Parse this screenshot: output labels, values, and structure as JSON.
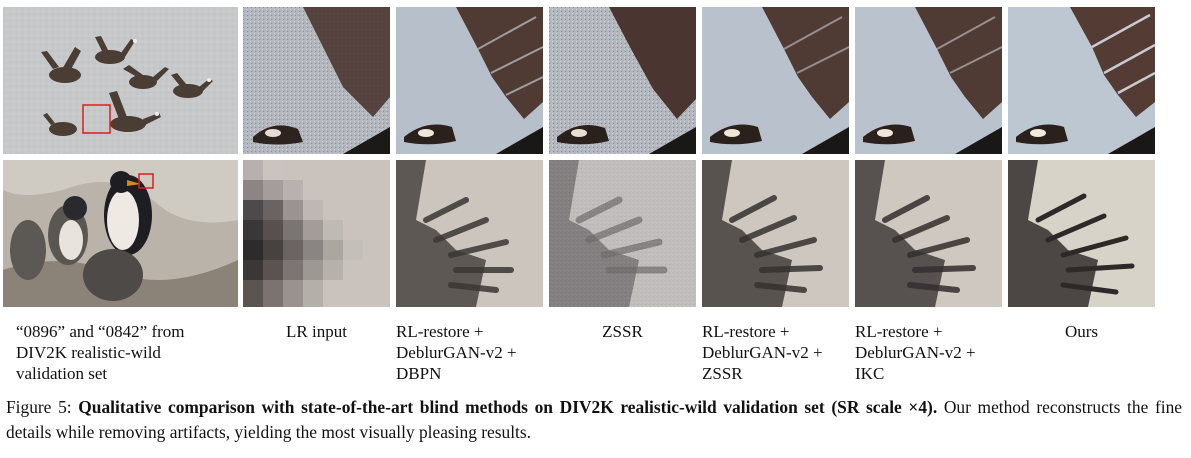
{
  "figure": {
    "columns": [
      {
        "label_lines": [
          "“0896” and “0842” from",
          "DIV2K realistic-wild",
          "validation set"
        ]
      },
      {
        "label_lines": [
          "LR input"
        ]
      },
      {
        "label_lines": [
          "RL-restore +",
          "DeblurGAN-v2 +",
          "DBPN"
        ]
      },
      {
        "label_lines": [
          "ZSSR"
        ]
      },
      {
        "label_lines": [
          "RL-restore +",
          "DeblurGAN-v2 +",
          "ZSSR"
        ]
      },
      {
        "label_lines": [
          "RL-restore +",
          "DeblurGAN-v2 +",
          "IKC"
        ]
      },
      {
        "label_lines": [
          "Ours"
        ]
      }
    ],
    "caption": {
      "prefix": "Figure 5: ",
      "bold": "Qualitative comparison with state-of-the-art blind methods on DIV2K realistic-wild validation set (SR scale ×4).",
      "rest": " Our method reconstructs the fine details while removing artifacts, yielding the most visually pleasing results."
    }
  }
}
